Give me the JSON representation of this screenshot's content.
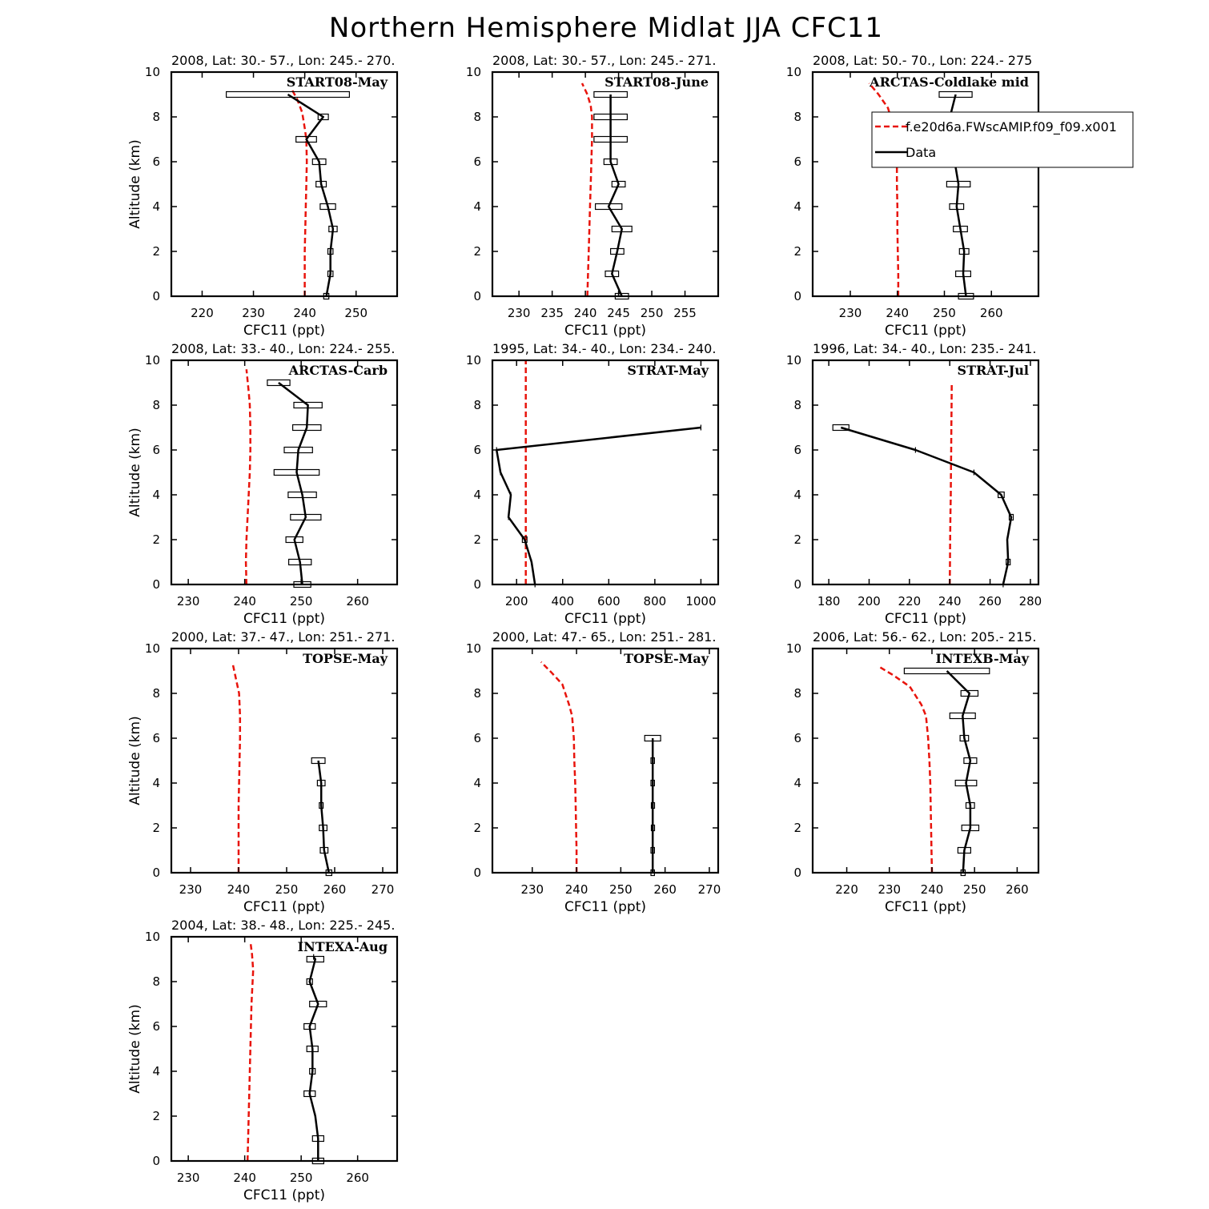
{
  "figure_title": "Northern Hemisphere Midlat JJA CFC11",
  "legend": {
    "model_label": "f.e20d6a.FWscAMIP.f09_f09.x001",
    "data_label": "Data",
    "model_color": "#e8140c",
    "data_color": "#000000"
  },
  "chart_data": [
    {
      "type": "line",
      "header": "2008, Lat:  30.- 57., Lon: 245.- 270.",
      "campaign": "START08-May",
      "xlabel": "CFC11 (ppt)",
      "ylabel": "Altitude (km)",
      "xlim": [
        214,
        258
      ],
      "ylim": [
        0,
        10
      ],
      "xticks": [
        220,
        230,
        240,
        250
      ],
      "yticks": [
        0,
        2,
        4,
        6,
        8,
        10
      ],
      "model": {
        "x": [
          240,
          240,
          240,
          240.1,
          240.2,
          240.3,
          240.4,
          240.3,
          240,
          239.5,
          238.5,
          237.3
        ],
        "y": [
          0,
          1,
          2,
          3,
          4,
          5,
          6,
          7,
          7.5,
          8.2,
          8.8,
          9.3
        ]
      },
      "data": {
        "x": [
          244.2,
          245,
          245,
          245.5,
          244.5,
          243.2,
          242.8,
          240.3,
          243.6,
          236.7
        ],
        "y": [
          0,
          1,
          2,
          3,
          4,
          5,
          6,
          7,
          8,
          9
        ],
        "err": [
          0.5,
          0.5,
          0.5,
          0.8,
          1.5,
          1,
          1.3,
          2,
          1,
          12
        ]
      }
    },
    {
      "type": "line",
      "header": "2008, Lat:  30.- 57., Lon: 245.- 271.",
      "campaign": "START08-June",
      "xlabel": "CFC11 (ppt)",
      "ylabel": "",
      "xlim": [
        226,
        260
      ],
      "ylim": [
        0,
        10
      ],
      "xticks": [
        230,
        235,
        240,
        245,
        250,
        255
      ],
      "yticks": [
        0,
        2,
        4,
        6,
        8,
        10
      ],
      "model": {
        "x": [
          240.3,
          240.4,
          240.5,
          240.6,
          240.7,
          240.8,
          240.9,
          241,
          241,
          240.8,
          240.3,
          239.5
        ],
        "y": [
          0,
          1,
          2,
          3,
          4,
          5,
          6,
          7,
          8,
          8.5,
          9,
          9.5
        ]
      },
      "data": {
        "x": [
          245.5,
          244,
          244.8,
          245.5,
          243.5,
          245,
          243.8,
          243.8,
          243.8,
          243.8
        ],
        "y": [
          0,
          1,
          2,
          3,
          4,
          5,
          6,
          7,
          8,
          9
        ],
        "err": [
          1,
          1,
          1,
          1.5,
          2,
          1,
          1,
          2.5,
          2.5,
          2.5
        ]
      }
    },
    {
      "type": "line",
      "header": "2008, Lat:  50.- 70., Lon: 224.- 275",
      "campaign": "ARCTAS-Coldlake mid",
      "xlabel": "CFC11 (ppt)",
      "ylabel": "",
      "xlim": [
        222,
        270
      ],
      "ylim": [
        0,
        10
      ],
      "xticks": [
        230,
        240,
        250,
        260
      ],
      "yticks": [
        0,
        2,
        4,
        6,
        8,
        10
      ],
      "model": {
        "x": [
          240.2,
          240.2,
          240.1,
          240,
          240,
          239.9,
          239.9,
          239.7,
          239.3,
          238,
          236,
          234
        ],
        "y": [
          0,
          1,
          2,
          3,
          4,
          5,
          6,
          7,
          7.5,
          8.4,
          9,
          9.5
        ]
      },
      "data": {
        "x": [
          254.6,
          254,
          254.2,
          253.4,
          252.6,
          253,
          252.2,
          251.8,
          251.2,
          252.4
        ],
        "y": [
          0,
          1,
          2,
          3,
          4,
          5,
          6,
          7,
          8,
          9
        ],
        "err": [
          1.6,
          1.6,
          1,
          1.5,
          1.5,
          2.5,
          1.5,
          2.5,
          2,
          3.5
        ]
      }
    },
    {
      "type": "line",
      "header": "2008, Lat:  33.- 40., Lon: 224.- 255.",
      "campaign": "ARCTAS-Carb",
      "xlabel": "CFC11 (ppt)",
      "ylabel": "Altitude (km)",
      "xlim": [
        227,
        267
      ],
      "ylim": [
        0,
        10
      ],
      "xticks": [
        230,
        240,
        250,
        260
      ],
      "yticks": [
        0,
        2,
        4,
        6,
        8,
        10
      ],
      "model": {
        "x": [
          240.3,
          240.2,
          240.3,
          240.5,
          240.7,
          240.9,
          241,
          241,
          240.9,
          240.7,
          240.5,
          240.3
        ],
        "y": [
          0,
          1,
          2,
          3,
          4,
          5,
          6,
          7,
          8,
          8.6,
          9.1,
          9.6
        ]
      },
      "data": {
        "x": [
          250.2,
          249.8,
          248.8,
          250.8,
          250.2,
          249.2,
          249.5,
          251,
          251.2,
          246
        ],
        "y": [
          0,
          1,
          2,
          3,
          4,
          5,
          6,
          7,
          8,
          9
        ],
        "err": [
          1.5,
          2,
          1.5,
          2.7,
          2.5,
          4,
          2.5,
          2.5,
          2.5,
          2
        ]
      }
    },
    {
      "type": "line",
      "header": "1995, Lat: 34.- 40., Lon: 234.- 240.",
      "campaign": "STRAT-May",
      "xlabel": "CFC11 (ppt)",
      "ylabel": "",
      "xlim": [
        95,
        1075
      ],
      "ylim": [
        0,
        10
      ],
      "xticks": [
        200,
        400,
        600,
        800,
        1000
      ],
      "yticks": [
        0,
        2,
        4,
        6,
        8,
        10
      ],
      "model": {
        "x": [
          240,
          240,
          240,
          240,
          240,
          240,
          240,
          240,
          240,
          240,
          240
        ],
        "y": [
          0,
          1,
          2,
          3,
          4,
          5,
          6,
          7,
          8,
          9,
          10
        ]
      },
      "data": {
        "x": [
          280,
          265,
          235,
          165,
          175,
          130,
          113,
          1000
        ],
        "y": [
          0,
          1,
          2,
          3,
          4,
          5,
          6,
          7
        ],
        "err": [
          0,
          0,
          10,
          0,
          0,
          0,
          0,
          0
        ]
      }
    },
    {
      "type": "line",
      "header": "1996, Lat: 34.- 40., Lon: 235.- 241.",
      "campaign": "STRAT-Jul",
      "xlabel": "CFC11 (ppt)",
      "ylabel": "",
      "xlim": [
        172,
        284
      ],
      "ylim": [
        0,
        10
      ],
      "xticks": [
        180,
        200,
        220,
        240,
        260,
        280
      ],
      "yticks": [
        0,
        2,
        4,
        6,
        8,
        10
      ],
      "model": {
        "x": [
          240,
          240.1,
          240.2,
          240.3,
          240.5,
          240.6,
          240.7,
          240.8,
          240.9,
          241
        ],
        "y": [
          0,
          1,
          2,
          3,
          4,
          5,
          6,
          7,
          8,
          9
        ]
      },
      "data": {
        "x": [
          266.5,
          269,
          268.5,
          270.5,
          265.5,
          252,
          223,
          186
        ],
        "y": [
          0,
          1,
          2,
          3,
          4,
          5,
          6,
          7
        ],
        "err": [
          0,
          1,
          0,
          1,
          1.5,
          0,
          0,
          4
        ]
      }
    },
    {
      "type": "line",
      "header": "2000, Lat: 37.- 47., Lon: 251.- 271.",
      "campaign": "TOPSE-May",
      "xlabel": "CFC11 (ppt)",
      "ylabel": "Altitude (km)",
      "xlim": [
        226,
        273
      ],
      "ylim": [
        0,
        10
      ],
      "xticks": [
        230,
        240,
        250,
        260,
        270
      ],
      "yticks": [
        0,
        2,
        4,
        6,
        8,
        10
      ],
      "model": {
        "x": [
          240,
          240,
          240,
          240,
          240.1,
          240.2,
          240.3,
          240.3,
          240.1,
          239.6,
          238.8
        ],
        "y": [
          0,
          1,
          2,
          3,
          4,
          5,
          6,
          7,
          8,
          8.5,
          9.3
        ]
      },
      "data": {
        "x": [
          258.8,
          257.8,
          257.6,
          257.2,
          257.2,
          256.6
        ],
        "y": [
          0,
          1,
          2,
          3,
          4,
          5
        ],
        "err": [
          0.6,
          0.8,
          0.8,
          0.4,
          0.8,
          1.4
        ]
      }
    },
    {
      "type": "line",
      "header": "2000, Lat: 47.- 65., Lon: 251.- 281.",
      "campaign": "TOPSE-May",
      "xlabel": "CFC11 (ppt)",
      "ylabel": "",
      "xlim": [
        221,
        272
      ],
      "ylim": [
        0,
        10
      ],
      "xticks": [
        230,
        240,
        250,
        260,
        270
      ],
      "yticks": [
        0,
        2,
        4,
        6,
        8,
        10
      ],
      "model": {
        "x": [
          240,
          240,
          239.9,
          239.8,
          239.7,
          239.5,
          239.4,
          239,
          238.3,
          236.8,
          234.5,
          232
        ],
        "y": [
          0,
          1,
          2,
          3,
          4,
          5,
          6,
          7,
          7.5,
          8.4,
          8.9,
          9.4
        ]
      },
      "data": {
        "x": [
          257.2,
          257.2,
          257.2,
          257.2,
          257.2,
          257.2,
          257.2
        ],
        "y": [
          0,
          1,
          2,
          3,
          4,
          5,
          6
        ],
        "err": [
          0.4,
          0.4,
          0.3,
          0.3,
          0.4,
          0.4,
          1.8
        ]
      }
    },
    {
      "type": "line",
      "header": "2006, Lat: 56.- 62., Lon: 205.- 215.",
      "campaign": "INTEXB-May",
      "xlabel": "CFC11 (ppt)",
      "ylabel": "",
      "xlim": [
        212,
        265
      ],
      "ylim": [
        0,
        10
      ],
      "xticks": [
        220,
        230,
        240,
        250,
        260
      ],
      "yticks": [
        0,
        2,
        4,
        6,
        8,
        10
      ],
      "model": {
        "x": [
          240,
          239.9,
          239.8,
          239.7,
          239.6,
          239.4,
          239.1,
          238.6,
          237.5,
          234.8,
          231,
          227.5
        ],
        "y": [
          0,
          1,
          2,
          3,
          4,
          5,
          6,
          7,
          7.5,
          8.3,
          8.8,
          9.2
        ]
      },
      "data": {
        "x": [
          247.3,
          247.6,
          249,
          249,
          248,
          249,
          247.6,
          247.2,
          248.8,
          243.5
        ],
        "y": [
          0,
          1,
          2,
          3,
          4,
          5,
          6,
          7,
          8,
          9
        ],
        "err": [
          0.5,
          1.5,
          2,
          1,
          2.5,
          1.5,
          1,
          3,
          2,
          10
        ]
      }
    },
    {
      "type": "line",
      "header": "2004, Lat: 38.- 48., Lon: 225.- 245.",
      "campaign": "INTEXA-Aug",
      "xlabel": "CFC11 (ppt)",
      "ylabel": "Altitude (km)",
      "xlim": [
        227,
        267
      ],
      "ylim": [
        0,
        10
      ],
      "xticks": [
        230,
        240,
        250,
        260
      ],
      "yticks": [
        0,
        2,
        4,
        6,
        8,
        10
      ],
      "model": {
        "x": [
          240.5,
          240.6,
          240.7,
          240.8,
          240.9,
          241,
          241.1,
          241.2,
          241.4,
          241.5,
          241.3,
          241
        ],
        "y": [
          0,
          1,
          2,
          3,
          4,
          5,
          6,
          7,
          8,
          8.5,
          9.2,
          9.8
        ]
      },
      "data": {
        "x": [
          253,
          253,
          252.5,
          251.5,
          252,
          252,
          251.5,
          253,
          251.5,
          252.5,
          252.2
        ],
        "y": [
          0,
          1,
          2,
          3,
          4,
          5,
          6,
          7,
          8,
          9,
          9.1
        ],
        "err": [
          1,
          1,
          0,
          1,
          0.5,
          1,
          1,
          1.5,
          0.5,
          1.5,
          0
        ]
      }
    }
  ]
}
